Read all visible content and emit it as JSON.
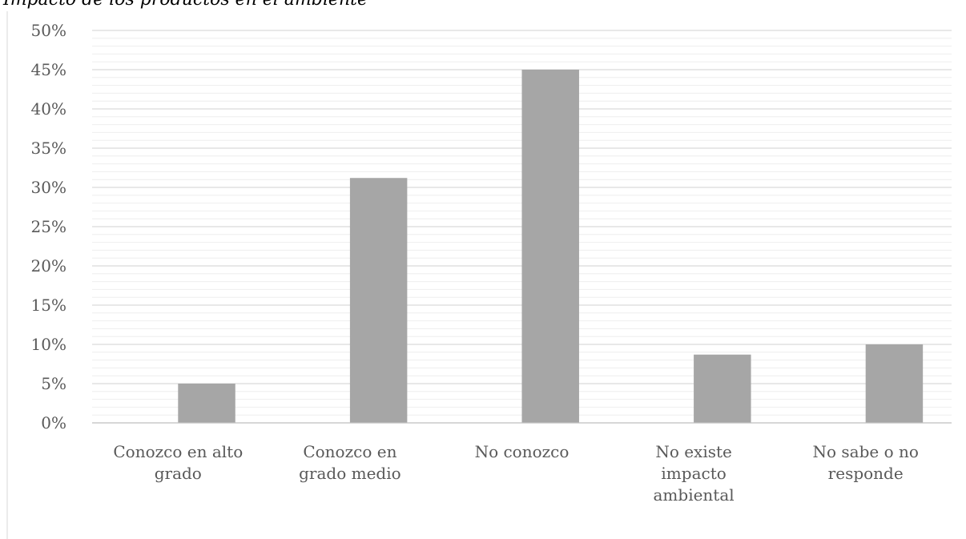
{
  "chart_data": {
    "type": "bar",
    "title": "Impacto de los productos en el ambiente",
    "categories": [
      [
        "Conozco en alto",
        "grado"
      ],
      [
        "Conozco en",
        "grado medio"
      ],
      [
        "No conozco"
      ],
      [
        "No existe",
        "impacto",
        "ambiental"
      ],
      [
        "No sabe o no",
        "responde"
      ]
    ],
    "values": [
      5,
      31.2,
      45,
      8.7,
      10
    ],
    "unit": "%",
    "yticks": [
      "0%",
      "5%",
      "10%",
      "15%",
      "20%",
      "25%",
      "30%",
      "35%",
      "40%",
      "45%",
      "50%"
    ],
    "ylim": [
      0,
      50
    ],
    "grid": true,
    "bar_color": "#a6a6a6",
    "xlabel": "",
    "ylabel": ""
  }
}
